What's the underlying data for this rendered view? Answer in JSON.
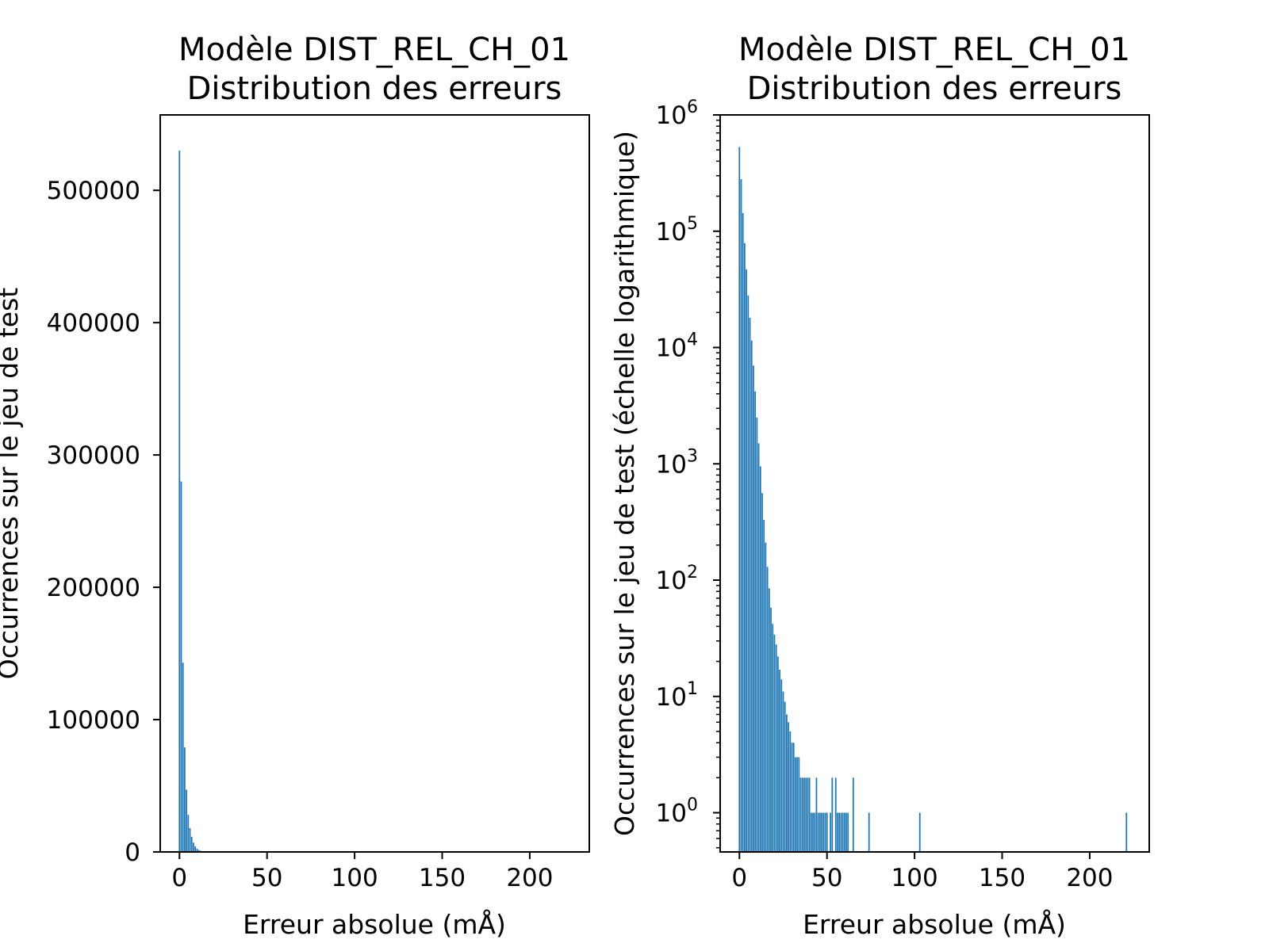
{
  "chart_data": [
    {
      "type": "bar",
      "yscale": "linear",
      "title_line1": "Modèle DIST_REL_CH_01",
      "title_line2": "Distribution des erreurs",
      "xlabel": "Erreur absolue (mÅ)",
      "ylabel": "Occurrences sur le jeu de test",
      "xlim": [
        -11,
        234
      ],
      "ylim": [
        0,
        557000
      ],
      "xticks": [
        0,
        50,
        100,
        150,
        200
      ],
      "yticks": [
        0,
        100000,
        200000,
        300000,
        400000,
        500000
      ],
      "color": "#1f77b4"
    },
    {
      "type": "bar",
      "yscale": "log",
      "title_line1": "Modèle DIST_REL_CH_01",
      "title_line2": "Distribution des erreurs",
      "xlabel": "Erreur absolue (mÅ)",
      "ylabel": "Occurrences sur le jeu de test (échelle logarithmique)",
      "xlim": [
        -11,
        234
      ],
      "ylim": [
        0.46,
        1000000
      ],
      "xticks": [
        0,
        50,
        100,
        150,
        200
      ],
      "yticks_log": [
        {
          "base": "10",
          "exp": "0",
          "value": 1
        },
        {
          "base": "10",
          "exp": "1",
          "value": 10
        },
        {
          "base": "10",
          "exp": "2",
          "value": 100
        },
        {
          "base": "10",
          "exp": "3",
          "value": 1000
        },
        {
          "base": "10",
          "exp": "4",
          "value": 10000
        },
        {
          "base": "10",
          "exp": "5",
          "value": 100000
        },
        {
          "base": "10",
          "exp": "6",
          "value": 1000000
        }
      ],
      "color": "#1f77b4"
    }
  ],
  "histogram": {
    "x": [
      0,
      1,
      2,
      3,
      4,
      5,
      6,
      7,
      8,
      9,
      10,
      11,
      12,
      13,
      14,
      15,
      16,
      17,
      18,
      19,
      20,
      21,
      22,
      23,
      24,
      25,
      26,
      27,
      28,
      29,
      30,
      31,
      32,
      33,
      34,
      35,
      36,
      37,
      38,
      39,
      40,
      41,
      42,
      43,
      44,
      45,
      46,
      47,
      48,
      49,
      50,
      52,
      53,
      55,
      56,
      57,
      58,
      59,
      60,
      61,
      62,
      65,
      74,
      103,
      221
    ],
    "values": [
      530000,
      280000,
      143000,
      79000,
      47000,
      28000,
      18000,
      11500,
      7000,
      4200,
      2500,
      1500,
      950,
      560,
      330,
      210,
      130,
      85,
      58,
      42,
      34,
      28,
      22,
      17,
      14,
      11,
      9,
      7,
      6,
      5,
      4,
      4,
      3,
      3,
      3,
      2,
      2,
      2,
      2,
      2,
      2,
      1,
      1,
      1,
      2,
      1,
      1,
      1,
      1,
      1,
      1,
      1,
      2,
      2,
      1,
      1,
      1,
      1,
      1,
      1,
      1,
      2,
      1,
      1,
      1
    ]
  }
}
